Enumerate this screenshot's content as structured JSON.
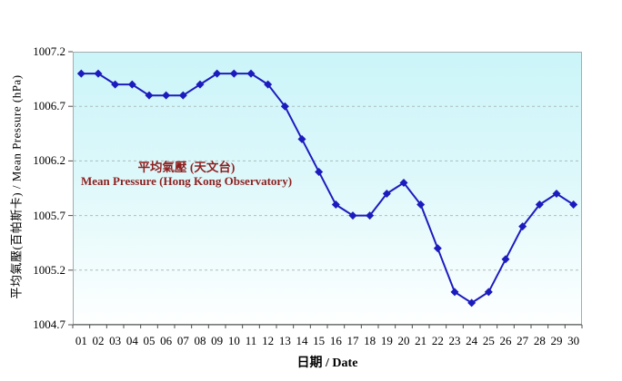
{
  "chart_data": {
    "type": "line",
    "title": "",
    "xlabel": "日期 / Date",
    "ylabel": "平均氣壓(百帕斯卡) / Mean Pressure (hPa)",
    "annotation": {
      "line1": "平均氣壓 (天文台)",
      "line2": "Mean Pressure (Hong Kong Observatory)",
      "color": "#8e1f1f"
    },
    "categories": [
      "01",
      "02",
      "03",
      "04",
      "05",
      "06",
      "07",
      "08",
      "09",
      "10",
      "11",
      "12",
      "13",
      "14",
      "15",
      "16",
      "17",
      "18",
      "19",
      "20",
      "21",
      "22",
      "23",
      "24",
      "25",
      "26",
      "27",
      "28",
      "29",
      "30"
    ],
    "series": [
      {
        "name": "Mean Pressure (Hong Kong Observatory)",
        "values": [
          1007.0,
          1007.0,
          1006.9,
          1006.9,
          1006.8,
          1006.8,
          1006.8,
          1006.9,
          1007.0,
          1007.0,
          1007.0,
          1006.9,
          1006.7,
          1006.4,
          1006.1,
          1005.8,
          1005.7,
          1005.7,
          1005.9,
          1006.0,
          1005.8,
          1005.4,
          1005.0,
          1004.9,
          1005.0,
          1005.3,
          1005.6,
          1005.8,
          1005.9,
          1005.8
        ]
      }
    ],
    "ylim": [
      1004.7,
      1007.2
    ],
    "yticks": [
      1007.2,
      1006.7,
      1006.2,
      1005.7,
      1005.2,
      1004.7
    ],
    "grid": "horizontal-dashed",
    "legend_position": "none",
    "marker": "diamond",
    "line_color": "#1c1cbe",
    "grid_color": "#aebcbc",
    "axis_color": "#4d4d4d",
    "plot_border_color": "#a3adad",
    "plot_bg_gradient": [
      "#cbf5f9",
      "#ddf8fa",
      "#feffff"
    ]
  }
}
